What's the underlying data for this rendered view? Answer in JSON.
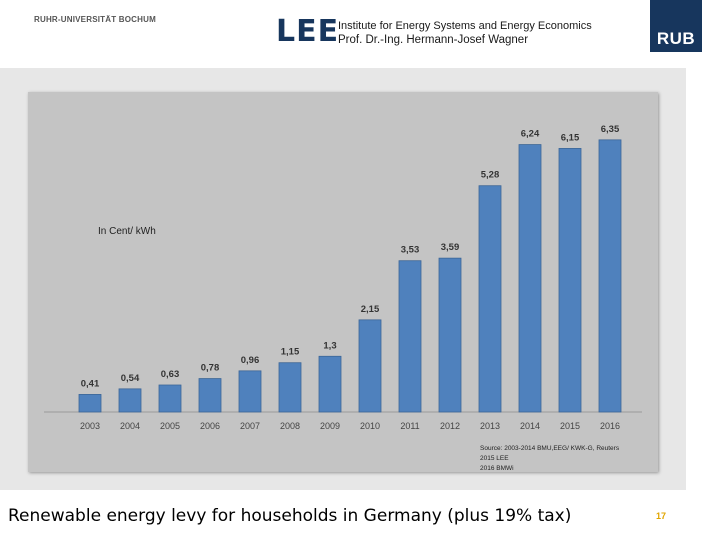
{
  "header": {
    "university": "RUHR-UNIVERSITÄT BOCHUM",
    "lee_logo": "LEE",
    "institute": "Institute for Energy Systems and Energy Economics",
    "professor": "Prof. Dr.-Ing. Hermann-Josef Wagner",
    "rub_logo": "RUB"
  },
  "colors": {
    "bar": "#4f81bd",
    "bar_edge": "#3b6596",
    "brand": "#17365d",
    "page_number": "#e1a500"
  },
  "chart_data": {
    "type": "bar",
    "title": "",
    "unit_label": "In Cent/ kWh",
    "xlabel": "",
    "ylabel": "",
    "ylim": [
      0,
      7
    ],
    "categories": [
      "2003",
      "2004",
      "2005",
      "2006",
      "2007",
      "2008",
      "2009",
      "2010",
      "2011",
      "2012",
      "2013",
      "2014",
      "2015",
      "2016"
    ],
    "values": [
      0.41,
      0.54,
      0.63,
      0.78,
      0.96,
      1.15,
      1.3,
      2.15,
      3.53,
      3.59,
      5.28,
      6.24,
      6.15,
      6.35
    ],
    "value_labels": [
      "0,41",
      "0,54",
      "0,63",
      "0,78",
      "0,96",
      "1,15",
      "1,3",
      "2,15",
      "3,53",
      "3,59",
      "5,28",
      "6,24",
      "6,15",
      "6,35"
    ],
    "source_lines": [
      "Source: 2003-2014 BMU,EEG/ KWK-G, Reuters",
      "2015 LEE",
      "2016 BMWi"
    ]
  },
  "caption": "Renewable energy levy for households in Germany (plus 19% tax)",
  "page_number": "17"
}
